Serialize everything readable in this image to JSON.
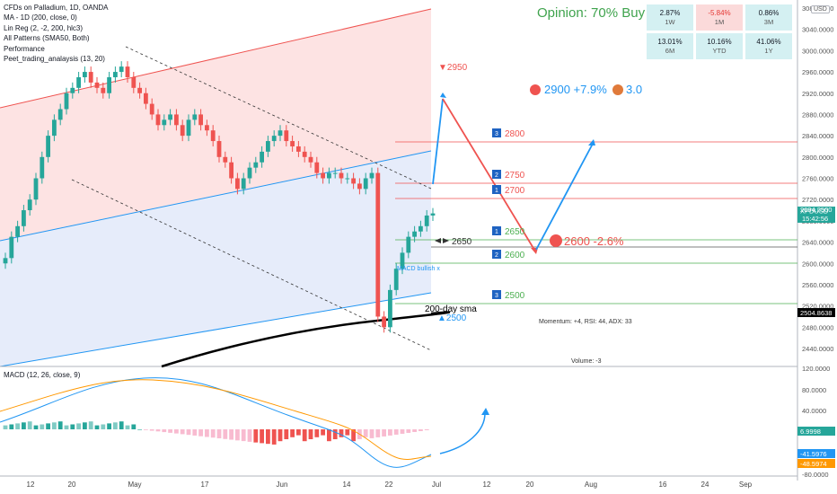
{
  "legend": {
    "title": "CFDs on Palladium, 1D, OANDA",
    "lines": [
      "MA - 1D (200, close, 0)",
      "Lin Reg (2, -2, 200, hlc3)",
      "All Patterns (SMA50, Both)",
      "Performance",
      "Peet_trading_analaysis (13, 20)"
    ]
  },
  "currency_badge": "USD",
  "opinion": "Opinion: 70% Buy",
  "performance": [
    {
      "value": "2.87%",
      "period": "1W",
      "color": "#d4f0f2"
    },
    {
      "value": "-5.84%",
      "period": "1M",
      "color": "#fbdada"
    },
    {
      "value": "0.86%",
      "period": "3M",
      "color": "#d4f0f2"
    },
    {
      "value": "13.01%",
      "period": "6M",
      "color": "#d4f0f2"
    },
    {
      "value": "10.16%",
      "period": "YTD",
      "color": "#d4f0f2"
    },
    {
      "value": "41.06%",
      "period": "1Y",
      "color": "#d4f0f2"
    }
  ],
  "price_axis": [
    "3080.0000",
    "3040.0000",
    "3000.0000",
    "2960.0000",
    "2920.0000",
    "2880.0000",
    "2840.0000",
    "2800.0000",
    "2760.0000",
    "2720.0000",
    "2680.0000",
    "2640.0000",
    "2600.0000",
    "2560.0000",
    "2520.0000",
    "2480.0000",
    "2440.0000"
  ],
  "macd_axis": [
    "120.0000",
    "80.0000",
    "40.0000",
    "-80.0000"
  ],
  "time_axis": [
    "12",
    "20",
    "May",
    "17",
    "Jun",
    "14",
    "22",
    "Jul",
    "12",
    "20",
    "Aug",
    "16",
    "24",
    "Sep"
  ],
  "price_tags": {
    "symbol": "XPDUSD",
    "price": "2694.2500",
    "countdown": "15:42:56",
    "sma": "2504.8638",
    "macd_hist": "6.9998",
    "macd_line": "-41.5976",
    "signal_line": "-48.5974"
  },
  "annotations": {
    "target_2950": "▼2950",
    "target_2500": "▲2500",
    "label_2650": "2650",
    "sma_label": "200-day sma",
    "target_up": "2900 +7.9%",
    "target_up_score": "3.0",
    "target_down": "2600 -2.6%",
    "momentum": "Momentum: +4, RSI: 44, ADX: 33",
    "volume": "Volume: -3",
    "macd_bullish": "MACD bullish x",
    "macd_title": "MACD (12, 26, close, 9)"
  },
  "levels": [
    {
      "num": "3",
      "price": "2800",
      "kind": "resistance"
    },
    {
      "num": "2",
      "price": "2750",
      "kind": "resistance"
    },
    {
      "num": "1",
      "price": "2700",
      "kind": "resistance"
    },
    {
      "num": "1",
      "price": "2650",
      "kind": "support"
    },
    {
      "num": "2",
      "price": "2600",
      "kind": "support"
    },
    {
      "num": "3",
      "price": "2500",
      "kind": "support"
    }
  ],
  "colors": {
    "up": "#26a69a",
    "down": "#ef5350",
    "blue": "#2196f3",
    "black": "#000000"
  }
}
